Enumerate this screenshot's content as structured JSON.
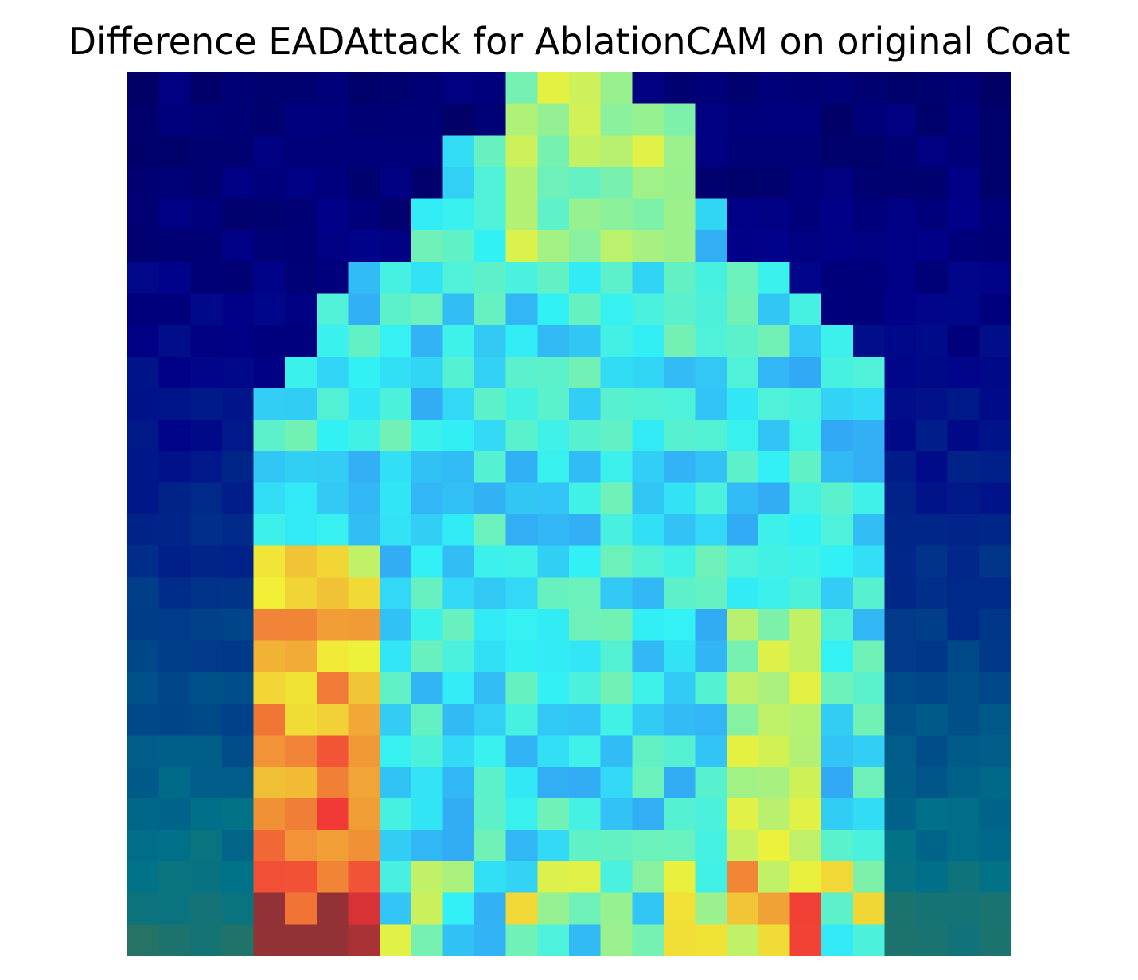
{
  "figure": {
    "title": "Difference EADAttack for AblationCAM on original Coat"
  },
  "image": {
    "kind": "heatmap-overlay",
    "grid_size": [
      28,
      28
    ],
    "colormap": "jet blended over coat silhouette",
    "interpolation": "nearest",
    "axis": "off"
  }
}
